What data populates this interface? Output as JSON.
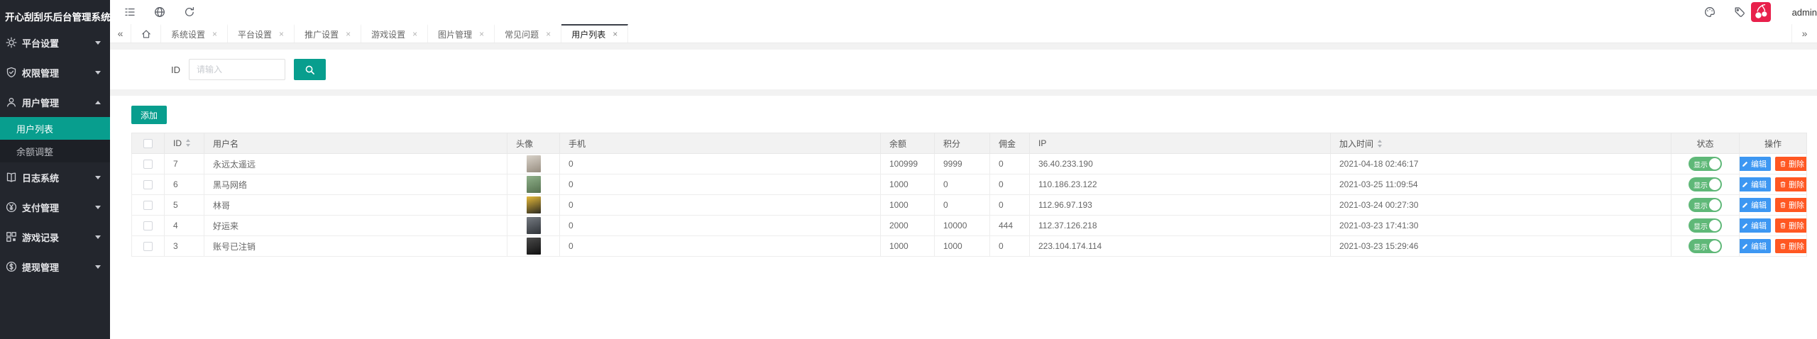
{
  "app": {
    "title": "开心刮刮乐后台管理系统",
    "username": "admin"
  },
  "theme": {
    "teal": "#089e8e",
    "sidebar_bg": "#23262d",
    "submenu_bg": "#1d2026",
    "active_tab_border": "#3c4049",
    "toggle_green": "#5FB878",
    "edit_blue": "#3d97f2",
    "delete_orange": "#ff5722",
    "avatar_badge_red": "#e8204b"
  },
  "sidebar": {
    "items": [
      {
        "label": "平台设置",
        "icon": "gear-icon",
        "state": "collapsed"
      },
      {
        "label": "权限管理",
        "icon": "shield-check-icon",
        "state": "collapsed"
      },
      {
        "label": "用户管理",
        "icon": "user-icon",
        "state": "expanded",
        "children": [
          {
            "label": "用户列表",
            "active": true
          },
          {
            "label": "余额调整",
            "active": false
          }
        ]
      },
      {
        "label": "日志系统",
        "icon": "book-icon",
        "state": "collapsed"
      },
      {
        "label": "支付管理",
        "icon": "yen-circle-icon",
        "state": "collapsed"
      },
      {
        "label": "游戏记录",
        "icon": "game-grid-icon",
        "state": "collapsed"
      },
      {
        "label": "提现管理",
        "icon": "dollar-circle-icon",
        "state": "collapsed"
      }
    ]
  },
  "tabbar": {
    "collapse_glyph": "«",
    "expand_glyph": "»",
    "close_glyph": "×",
    "tabs": [
      {
        "label": "系统设置",
        "active": false
      },
      {
        "label": "平台设置",
        "active": false
      },
      {
        "label": "推广设置",
        "active": false
      },
      {
        "label": "游戏设置",
        "active": false
      },
      {
        "label": "图片管理",
        "active": false
      },
      {
        "label": "常见问题",
        "active": false
      },
      {
        "label": "用户列表",
        "active": true
      }
    ]
  },
  "search": {
    "label": "ID",
    "placeholder": "请输入"
  },
  "toolbar": {
    "add_label": "添加"
  },
  "table": {
    "columns": [
      {
        "label": "ID",
        "sortable": true
      },
      {
        "label": "用户名",
        "sortable": false
      },
      {
        "label": "头像",
        "sortable": false
      },
      {
        "label": "手机",
        "sortable": false
      },
      {
        "label": "余额",
        "sortable": false
      },
      {
        "label": "积分",
        "sortable": false
      },
      {
        "label": "佣金",
        "sortable": false
      },
      {
        "label": "IP",
        "sortable": false
      },
      {
        "label": "加入时间",
        "sortable": true
      },
      {
        "label": "状态",
        "sortable": false
      },
      {
        "label": "操作",
        "sortable": false
      }
    ],
    "status_label": "显示",
    "edit_label": "编辑",
    "delete_label": "删除",
    "rows": [
      {
        "id": "7",
        "username": "永远太遥远",
        "phone": "0",
        "balance": "100999",
        "points": "9999",
        "commission": "0",
        "ip": "36.40.233.190",
        "join_time": "2021-04-18 02:46:17",
        "avatar_colors": [
          "#d9d3ca",
          "#978d80"
        ]
      },
      {
        "id": "6",
        "username": "黑马网络",
        "phone": "0",
        "balance": "1000",
        "points": "0",
        "commission": "0",
        "ip": "110.186.23.122",
        "join_time": "2021-03-25 11:09:54",
        "avatar_colors": [
          "#8fb18a",
          "#55704f"
        ]
      },
      {
        "id": "5",
        "username": "林哥",
        "phone": "0",
        "balance": "1000",
        "points": "0",
        "commission": "0",
        "ip": "112.96.97.193",
        "join_time": "2021-03-24 00:27:30",
        "avatar_colors": [
          "#e5b93a",
          "#2c2a20"
        ]
      },
      {
        "id": "4",
        "username": "好运来",
        "phone": "0",
        "balance": "2000",
        "points": "10000",
        "commission": "444",
        "ip": "112.37.126.218",
        "join_time": "2021-03-23 17:41:30",
        "avatar_colors": [
          "#767b82",
          "#2f3338"
        ]
      },
      {
        "id": "3",
        "username": "账号已注销",
        "phone": "0",
        "balance": "1000",
        "points": "1000",
        "commission": "0",
        "ip": "223.104.174.114",
        "join_time": "2021-03-23 15:29:46",
        "avatar_colors": [
          "#4a4a4a",
          "#101010"
        ]
      }
    ]
  }
}
